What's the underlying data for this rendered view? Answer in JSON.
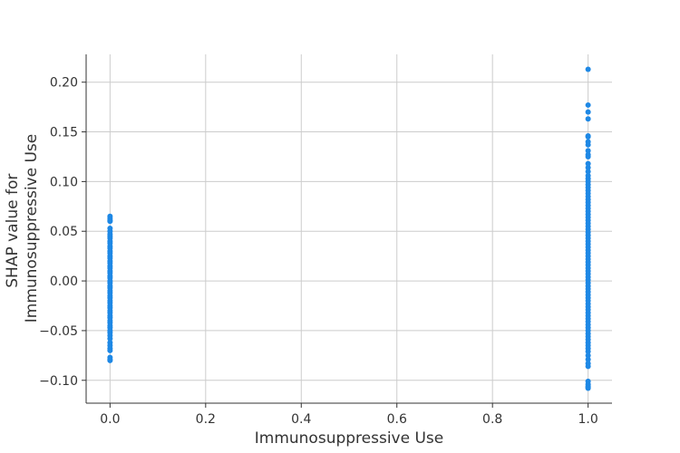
{
  "chart_data": {
    "type": "scatter",
    "title": "",
    "xlabel": "Immunosuppressive Use",
    "ylabel": [
      "SHAP value for",
      "Immunosuppressive Use"
    ],
    "xlim": [
      -0.05,
      1.05
    ],
    "ylim": [
      -0.123,
      0.228
    ],
    "xticks": [
      0.0,
      0.2,
      0.4,
      0.6,
      0.8,
      1.0
    ],
    "xtick_labels": [
      "0.0",
      "0.2",
      "0.4",
      "0.6",
      "0.8",
      "1.0"
    ],
    "yticks": [
      -0.1,
      -0.05,
      0.0,
      0.05,
      0.1,
      0.15,
      0.2
    ],
    "ytick_labels": [
      "−0.10",
      "−0.05",
      "0.00",
      "0.05",
      "0.10",
      "0.15",
      "0.20"
    ],
    "grid": true,
    "legend": "none",
    "point_color": "#1E88E5",
    "series": [
      {
        "x_value": 0.0,
        "y": [
          0.065,
          0.063,
          0.061,
          0.06,
          0.053,
          0.05,
          0.047,
          0.045,
          0.043,
          0.04,
          0.038,
          0.035,
          0.033,
          0.03,
          0.028,
          0.025,
          0.023,
          0.02,
          0.018,
          0.015,
          0.013,
          0.01,
          0.008,
          0.005,
          0.003,
          0.0,
          -0.002,
          -0.005,
          -0.007,
          -0.01,
          -0.012,
          -0.015,
          -0.017,
          -0.02,
          -0.022,
          -0.025,
          -0.027,
          -0.03,
          -0.032,
          -0.035,
          -0.037,
          -0.04,
          -0.042,
          -0.045,
          -0.047,
          -0.05,
          -0.052,
          -0.055,
          -0.058,
          -0.062,
          -0.065,
          -0.068,
          -0.07,
          -0.077,
          -0.079,
          -0.08
        ]
      },
      {
        "x_value": 1.0,
        "y": [
          0.213,
          0.177,
          0.17,
          0.163,
          0.146,
          0.145,
          0.14,
          0.137,
          0.131,
          0.127,
          0.125,
          0.118,
          0.114,
          0.11,
          0.106,
          0.103,
          0.1,
          0.097,
          0.094,
          0.091,
          0.088,
          0.085,
          0.082,
          0.079,
          0.076,
          0.073,
          0.07,
          0.067,
          0.064,
          0.061,
          0.058,
          0.055,
          0.052,
          0.049,
          0.046,
          0.043,
          0.04,
          0.037,
          0.034,
          0.031,
          0.028,
          0.025,
          0.022,
          0.019,
          0.016,
          0.013,
          0.01,
          0.007,
          0.004,
          0.001,
          -0.002,
          -0.005,
          -0.008,
          -0.011,
          -0.014,
          -0.017,
          -0.02,
          -0.023,
          -0.026,
          -0.029,
          -0.032,
          -0.035,
          -0.038,
          -0.041,
          -0.044,
          -0.047,
          -0.05,
          -0.053,
          -0.056,
          -0.059,
          -0.062,
          -0.065,
          -0.068,
          -0.071,
          -0.075,
          -0.079,
          -0.083,
          -0.086,
          -0.101,
          -0.104,
          -0.106,
          -0.107,
          -0.108
        ]
      }
    ]
  }
}
